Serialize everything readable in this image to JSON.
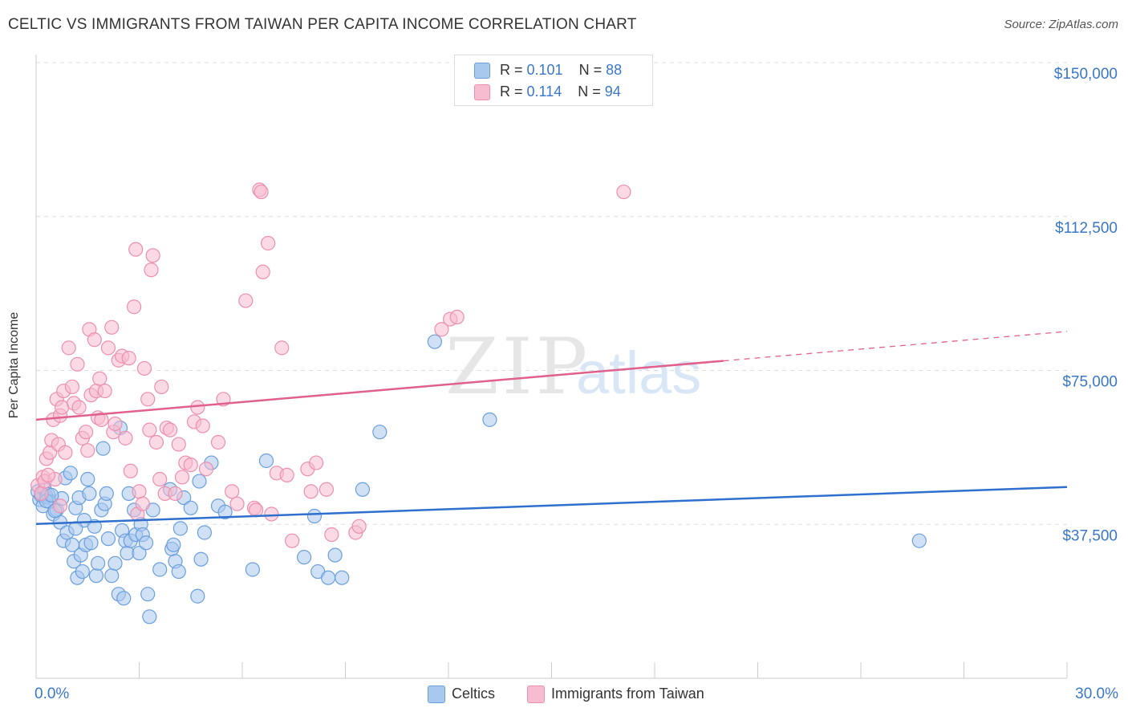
{
  "header": {
    "title": "CELTIC VS IMMIGRANTS FROM TAIWAN PER CAPITA INCOME CORRELATION CHART",
    "source": "Source: ZipAtlas.com"
  },
  "watermark": {
    "zip": "ZIP",
    "atlas": "atlas"
  },
  "legend": {
    "series1": {
      "r_label": "R = ",
      "r_value": "0.101",
      "n_label": "N = ",
      "n_value": "88"
    },
    "series2": {
      "r_label": "R = ",
      "r_value": "0.114",
      "n_label": "N = ",
      "n_value": "94"
    }
  },
  "colors": {
    "celtic_fill": "#a9c8ee",
    "celtic_stroke": "#6a9fdc",
    "celtic_line": "#2f6fcd",
    "taiwan_fill": "#f7bcd0",
    "taiwan_stroke": "#ec8fae",
    "taiwan_line": "#e0608e",
    "axis_label": "#3a77c9",
    "grid": "#dddddd"
  },
  "chart_data": {
    "type": "scatter",
    "title": "CELTIC VS IMMIGRANTS FROM TAIWAN PER CAPITA INCOME CORRELATION CHART",
    "xlabel": "",
    "ylabel": "Per Capita Income",
    "xlim": [
      0,
      30
    ],
    "ylim": [
      0,
      155000
    ],
    "x_tick_labels": [
      {
        "value": 0,
        "label": "0.0%"
      },
      {
        "value": 30,
        "label": "30.0%"
      }
    ],
    "y_ticks": [
      {
        "value": 37500,
        "label": "$37,500"
      },
      {
        "value": 75000,
        "label": "$75,000"
      },
      {
        "value": 112500,
        "label": "$112,500"
      },
      {
        "value": 150000,
        "label": "$150,000"
      }
    ],
    "grid": true,
    "legend_position": "top-center",
    "series": [
      {
        "name": "Celtics",
        "color": "#a9c8ee",
        "trend": {
          "x": [
            0,
            30
          ],
          "y": [
            37600,
            46600
          ],
          "dashed_from": null
        },
        "points": [
          [
            0.05,
            45500
          ],
          [
            0.1,
            43500
          ],
          [
            0.15,
            44500
          ],
          [
            0.2,
            42000
          ],
          [
            0.25,
            46000
          ],
          [
            0.3,
            44200
          ],
          [
            0.35,
            44800
          ],
          [
            0.4,
            43000
          ],
          [
            0.5,
            40000
          ],
          [
            0.6,
            41000
          ],
          [
            0.7,
            38000
          ],
          [
            0.75,
            43800
          ],
          [
            0.8,
            33500
          ],
          [
            0.85,
            48800
          ],
          [
            0.9,
            35500
          ],
          [
            1.0,
            50000
          ],
          [
            1.05,
            32500
          ],
          [
            1.1,
            28500
          ],
          [
            1.15,
            41500
          ],
          [
            1.2,
            24500
          ],
          [
            1.25,
            44000
          ],
          [
            1.3,
            30000
          ],
          [
            1.35,
            26000
          ],
          [
            1.4,
            38500
          ],
          [
            1.45,
            32500
          ],
          [
            1.5,
            48500
          ],
          [
            1.55,
            45000
          ],
          [
            1.6,
            33000
          ],
          [
            1.7,
            37000
          ],
          [
            1.75,
            25000
          ],
          [
            1.8,
            28000
          ],
          [
            1.9,
            41000
          ],
          [
            1.95,
            56000
          ],
          [
            2.0,
            42500
          ],
          [
            2.05,
            45000
          ],
          [
            2.1,
            34000
          ],
          [
            2.2,
            25000
          ],
          [
            2.3,
            28000
          ],
          [
            2.4,
            20500
          ],
          [
            2.45,
            61000
          ],
          [
            2.5,
            36000
          ],
          [
            2.55,
            19500
          ],
          [
            2.6,
            33500
          ],
          [
            2.65,
            30500
          ],
          [
            2.7,
            45000
          ],
          [
            2.75,
            33500
          ],
          [
            2.85,
            41000
          ],
          [
            2.9,
            35000
          ],
          [
            3.0,
            30500
          ],
          [
            3.05,
            37500
          ],
          [
            3.1,
            35000
          ],
          [
            3.2,
            33000
          ],
          [
            3.25,
            20500
          ],
          [
            3.3,
            15000
          ],
          [
            3.4,
            41000
          ],
          [
            3.6,
            26500
          ],
          [
            3.9,
            46000
          ],
          [
            3.95,
            31500
          ],
          [
            4.0,
            32500
          ],
          [
            4.05,
            28500
          ],
          [
            4.15,
            26000
          ],
          [
            4.2,
            36500
          ],
          [
            4.3,
            44000
          ],
          [
            4.5,
            41500
          ],
          [
            4.7,
            20000
          ],
          [
            4.75,
            48000
          ],
          [
            4.8,
            29000
          ],
          [
            4.9,
            35500
          ],
          [
            5.1,
            52500
          ],
          [
            5.3,
            42000
          ],
          [
            5.5,
            40500
          ],
          [
            6.3,
            26500
          ],
          [
            6.7,
            53000
          ],
          [
            7.8,
            29500
          ],
          [
            8.1,
            39500
          ],
          [
            8.2,
            26000
          ],
          [
            8.5,
            24500
          ],
          [
            8.7,
            30000
          ],
          [
            8.9,
            24500
          ],
          [
            9.5,
            46000
          ],
          [
            10.0,
            60000
          ],
          [
            11.6,
            82000
          ],
          [
            13.2,
            63000
          ],
          [
            25.7,
            33500
          ],
          [
            0.3,
            43200
          ],
          [
            0.45,
            44600
          ],
          [
            0.55,
            40800
          ],
          [
            1.15,
            36500
          ]
        ]
      },
      {
        "name": "Immigrants from Taiwan",
        "color": "#f7bcd0",
        "trend": {
          "x": [
            0,
            30
          ],
          "y": [
            63000,
            84500
          ],
          "dashed_from": 20
        },
        "points": [
          [
            0.05,
            47000
          ],
          [
            0.15,
            45000
          ],
          [
            0.2,
            49000
          ],
          [
            0.25,
            48000
          ],
          [
            0.3,
            53500
          ],
          [
            0.4,
            55000
          ],
          [
            0.45,
            58000
          ],
          [
            0.5,
            63000
          ],
          [
            0.55,
            48500
          ],
          [
            0.6,
            68000
          ],
          [
            0.65,
            57000
          ],
          [
            0.7,
            64000
          ],
          [
            0.75,
            66000
          ],
          [
            0.8,
            70000
          ],
          [
            0.85,
            55000
          ],
          [
            0.95,
            80500
          ],
          [
            1.05,
            71000
          ],
          [
            1.1,
            67000
          ],
          [
            1.2,
            76500
          ],
          [
            1.25,
            66000
          ],
          [
            1.35,
            58500
          ],
          [
            1.45,
            60000
          ],
          [
            1.5,
            55500
          ],
          [
            1.55,
            85000
          ],
          [
            1.6,
            69000
          ],
          [
            1.7,
            82500
          ],
          [
            1.75,
            70000
          ],
          [
            1.8,
            63500
          ],
          [
            1.85,
            73000
          ],
          [
            1.9,
            63000
          ],
          [
            2.0,
            70000
          ],
          [
            2.1,
            80500
          ],
          [
            2.2,
            85500
          ],
          [
            2.25,
            60000
          ],
          [
            2.3,
            62000
          ],
          [
            2.4,
            77500
          ],
          [
            2.5,
            78500
          ],
          [
            2.6,
            58500
          ],
          [
            2.7,
            78000
          ],
          [
            2.75,
            50500
          ],
          [
            2.85,
            90500
          ],
          [
            2.9,
            104500
          ],
          [
            2.95,
            40000
          ],
          [
            3.0,
            45500
          ],
          [
            3.1,
            42500
          ],
          [
            3.15,
            75500
          ],
          [
            3.25,
            68000
          ],
          [
            3.3,
            60500
          ],
          [
            3.35,
            99500
          ],
          [
            3.4,
            103000
          ],
          [
            3.5,
            57500
          ],
          [
            3.6,
            48500
          ],
          [
            3.65,
            71000
          ],
          [
            3.75,
            45000
          ],
          [
            3.8,
            61000
          ],
          [
            3.9,
            60500
          ],
          [
            4.05,
            45000
          ],
          [
            4.15,
            57000
          ],
          [
            4.25,
            49000
          ],
          [
            4.35,
            52500
          ],
          [
            4.5,
            52000
          ],
          [
            4.6,
            62500
          ],
          [
            4.7,
            66000
          ],
          [
            4.85,
            61500
          ],
          [
            4.95,
            51000
          ],
          [
            5.3,
            57500
          ],
          [
            5.45,
            68000
          ],
          [
            5.7,
            45500
          ],
          [
            5.85,
            42500
          ],
          [
            6.1,
            92000
          ],
          [
            6.35,
            41500
          ],
          [
            6.4,
            41000
          ],
          [
            6.5,
            119000
          ],
          [
            6.55,
            118500
          ],
          [
            6.6,
            99000
          ],
          [
            6.75,
            106000
          ],
          [
            6.85,
            40000
          ],
          [
            7.0,
            50000
          ],
          [
            7.15,
            80500
          ],
          [
            7.3,
            49500
          ],
          [
            7.45,
            33500
          ],
          [
            7.9,
            51000
          ],
          [
            8.0,
            45500
          ],
          [
            8.15,
            52500
          ],
          [
            8.45,
            46000
          ],
          [
            8.6,
            35000
          ],
          [
            9.3,
            35500
          ],
          [
            9.4,
            37000
          ],
          [
            11.8,
            85000
          ],
          [
            12.05,
            87500
          ],
          [
            12.25,
            88000
          ],
          [
            17.1,
            118500
          ],
          [
            0.7,
            42000
          ],
          [
            0.35,
            49500
          ]
        ]
      }
    ]
  }
}
